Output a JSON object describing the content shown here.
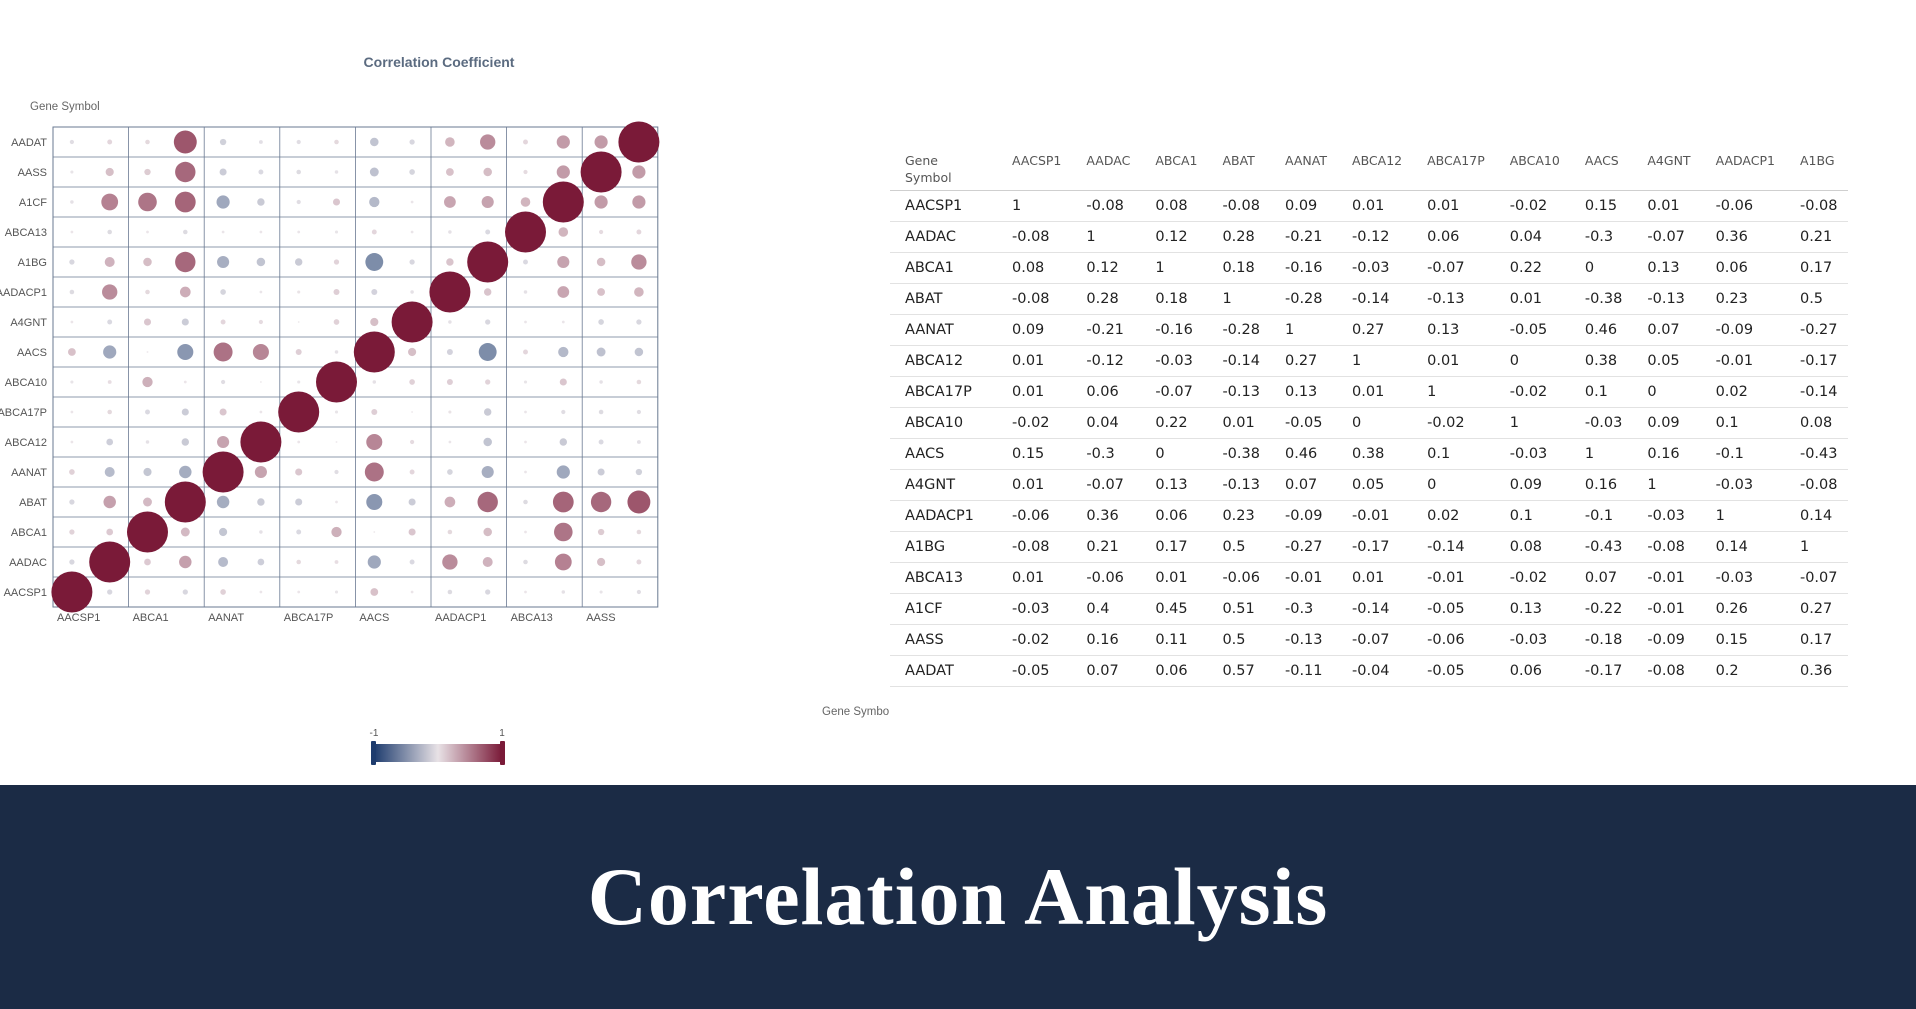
{
  "footer": {
    "title": "Correlation Analysis"
  },
  "chart_data": {
    "type": "bubble-correlation-matrix",
    "title": "Correlation Coefficient",
    "ylabel": "Gene Symbol",
    "xlabel": "Gene Symbo",
    "colorscale": {
      "min": -1,
      "max": 1,
      "min_label": "-1",
      "max_label": "1",
      "min_color": "#1e3c6e",
      "mid_color": "#e8e2e6",
      "max_color": "#7a1a38"
    },
    "grid": true,
    "x_tick_labels": [
      "AACSP1",
      "ABCA1",
      "AANAT",
      "ABCA17P",
      "AACS",
      "AADACP1",
      "ABCA13",
      "AASS"
    ],
    "x_genes": [
      "AACSP1",
      "AADAC",
      "ABCA1",
      "ABAT",
      "AANAT",
      "ABCA12",
      "ABCA17P",
      "ABCA10",
      "AACS",
      "A4GNT",
      "AADACP1",
      "A1BG",
      "ABCA13",
      "A1CF",
      "AASS",
      "AADAT"
    ],
    "y_genes": [
      "AADAT",
      "AASS",
      "A1CF",
      "ABCA13",
      "A1BG",
      "AADACP1",
      "A4GNT",
      "AACS",
      "ABCA10",
      "ABCA17P",
      "ABCA12",
      "AANAT",
      "ABAT",
      "ABCA1",
      "AADAC",
      "AACSP1"
    ],
    "columns": [
      "AACSP1",
      "AADAC",
      "ABCA1",
      "ABAT",
      "AANAT",
      "ABCA12",
      "ABCA17P",
      "ABCA10",
      "AACS",
      "A4GNT",
      "AADACP1",
      "A1BG"
    ],
    "rows": [
      {
        "gene": "AACSP1",
        "values": [
          1,
          -0.08,
          0.08,
          -0.08,
          0.09,
          0.01,
          0.01,
          -0.02,
          0.15,
          0.01,
          -0.06,
          -0.08
        ],
        "extra": [
          0.01,
          -0.03,
          -0.02,
          -0.05
        ]
      },
      {
        "gene": "AADAC",
        "values": [
          -0.08,
          1,
          0.12,
          0.28,
          -0.21,
          -0.12,
          0.06,
          0.04,
          -0.3,
          -0.07,
          0.36,
          0.21
        ],
        "extra": [
          -0.06,
          0.4,
          0.16,
          0.07
        ]
      },
      {
        "gene": "ABCA1",
        "values": [
          0.08,
          0.12,
          1,
          0.18,
          -0.16,
          -0.03,
          -0.07,
          0.22,
          0,
          0.13,
          0.06,
          0.17
        ],
        "extra": [
          0.01,
          0.45,
          0.11,
          0.06
        ]
      },
      {
        "gene": "ABAT",
        "values": [
          -0.08,
          0.28,
          0.18,
          1,
          -0.28,
          -0.14,
          -0.13,
          0.01,
          -0.38,
          -0.13,
          0.23,
          0.5
        ],
        "extra": [
          -0.06,
          0.51,
          0.5,
          0.57
        ]
      },
      {
        "gene": "AANAT",
        "values": [
          0.09,
          -0.21,
          -0.16,
          -0.28,
          1,
          0.27,
          0.13,
          -0.05,
          0.46,
          0.07,
          -0.09,
          -0.27
        ],
        "extra": [
          -0.01,
          -0.3,
          -0.13,
          -0.11
        ]
      },
      {
        "gene": "ABCA12",
        "values": [
          0.01,
          -0.12,
          -0.03,
          -0.14,
          0.27,
          1,
          0.01,
          0,
          0.38,
          0.05,
          -0.01,
          -0.17
        ],
        "extra": [
          0.01,
          -0.14,
          -0.07,
          -0.04
        ]
      },
      {
        "gene": "ABCA17P",
        "values": [
          0.01,
          0.06,
          -0.07,
          -0.13,
          0.13,
          0.01,
          1,
          -0.02,
          0.1,
          0,
          0.02,
          -0.14
        ],
        "extra": [
          -0.01,
          -0.05,
          -0.06,
          -0.05
        ]
      },
      {
        "gene": "ABCA10",
        "values": [
          -0.02,
          0.04,
          0.22,
          0.01,
          -0.05,
          0,
          -0.02,
          1,
          -0.03,
          0.09,
          0.1,
          0.08
        ],
        "extra": [
          -0.02,
          0.13,
          -0.03,
          0.06
        ]
      },
      {
        "gene": "AACS",
        "values": [
          0.15,
          -0.3,
          0,
          -0.38,
          0.46,
          0.38,
          0.1,
          -0.03,
          1,
          0.16,
          -0.1,
          -0.43
        ],
        "extra": [
          0.07,
          -0.22,
          -0.18,
          -0.17
        ]
      },
      {
        "gene": "A4GNT",
        "values": [
          0.01,
          -0.07,
          0.13,
          -0.13,
          0.07,
          0.05,
          0,
          0.09,
          0.16,
          1,
          -0.03,
          -0.08
        ],
        "extra": [
          -0.01,
          -0.01,
          -0.09,
          -0.08
        ]
      },
      {
        "gene": "AADACP1",
        "values": [
          -0.06,
          0.36,
          0.06,
          0.23,
          -0.09,
          -0.01,
          0.02,
          0.1,
          -0.1,
          -0.03,
          1,
          0.14
        ],
        "extra": [
          -0.03,
          0.26,
          0.15,
          0.2
        ]
      },
      {
        "gene": "A1BG",
        "values": [
          -0.08,
          0.21,
          0.17,
          0.5,
          -0.27,
          -0.17,
          -0.14,
          0.08,
          -0.43,
          -0.08,
          0.14,
          1
        ],
        "extra": [
          -0.07,
          0.27,
          0.17,
          0.36
        ]
      },
      {
        "gene": "ABCA13",
        "values": [
          0.01,
          -0.06,
          0.01,
          -0.06,
          -0.01,
          0.01,
          -0.01,
          -0.02,
          0.07,
          -0.01,
          -0.03,
          -0.07
        ],
        "extra": [
          1,
          0.2,
          0.05,
          0.07
        ]
      },
      {
        "gene": "A1CF",
        "values": [
          -0.03,
          0.4,
          0.45,
          0.51,
          -0.3,
          -0.14,
          -0.05,
          0.13,
          -0.22,
          -0.01,
          0.26,
          0.27
        ],
        "extra": [
          0.2,
          1,
          0.3,
          0.3
        ]
      },
      {
        "gene": "AASS",
        "values": [
          -0.02,
          0.16,
          0.11,
          0.5,
          -0.13,
          -0.07,
          -0.06,
          -0.03,
          -0.18,
          -0.09,
          0.15,
          0.17
        ],
        "extra": [
          0.05,
          0.3,
          1,
          0.3
        ]
      },
      {
        "gene": "AADAT",
        "values": [
          -0.05,
          0.07,
          0.06,
          0.57,
          -0.11,
          -0.04,
          -0.05,
          0.06,
          -0.17,
          -0.08,
          0.2,
          0.36
        ],
        "extra": [
          0.07,
          0.3,
          0.3,
          1
        ]
      }
    ],
    "table": {
      "first_header": "Gene Symbol"
    }
  }
}
